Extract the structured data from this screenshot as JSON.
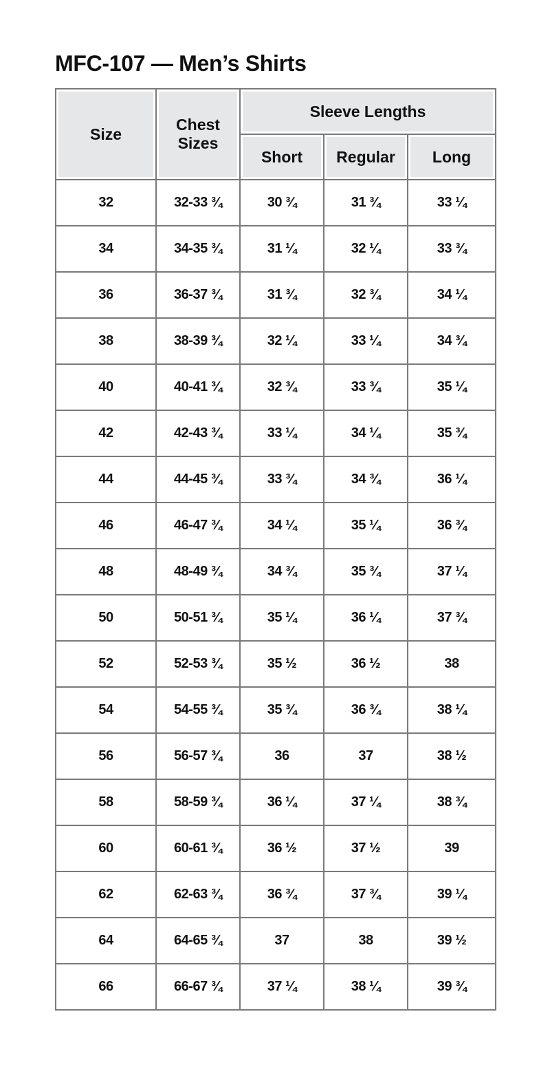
{
  "title": "MFC-107 — Men’s Shirts",
  "headers": {
    "size": "Size",
    "chest": "Chest Sizes",
    "sleeve": "Sleeve Lengths",
    "short": "Short",
    "regular": "Regular",
    "long": "Long"
  },
  "rows": [
    [
      "32",
      "32-33 ¾",
      "30 ¾",
      "31 ¾",
      "33 ¼"
    ],
    [
      "34",
      "34-35 ¾",
      "31 ¼",
      "32 ¼",
      "33 ¾"
    ],
    [
      "36",
      "36-37 ¾",
      "31 ¾",
      "32 ¾",
      "34 ¼"
    ],
    [
      "38",
      "38-39 ¾",
      "32 ¼",
      "33 ¼",
      "34 ¾"
    ],
    [
      "40",
      "40-41 ¾",
      "32 ¾",
      "33 ¾",
      "35 ¼"
    ],
    [
      "42",
      "42-43 ¾",
      "33 ¼",
      "34 ¼",
      "35 ¾"
    ],
    [
      "44",
      "44-45 ¾",
      "33 ¾",
      "34 ¾",
      "36 ¼"
    ],
    [
      "46",
      "46-47 ¾",
      "34 ¼",
      "35 ¼",
      "36 ¾"
    ],
    [
      "48",
      "48-49 ¾",
      "34 ¾",
      "35 ¾",
      "37 ¼"
    ],
    [
      "50",
      "50-51 ¾",
      "35 ¼",
      "36 ¼",
      "37 ¾"
    ],
    [
      "52",
      "52-53 ¾",
      "35 ½",
      "36 ½",
      "38"
    ],
    [
      "54",
      "54-55 ¾",
      "35 ¾",
      "36 ¾",
      "38 ¼"
    ],
    [
      "56",
      "56-57 ¾",
      "36",
      "37",
      "38 ½"
    ],
    [
      "58",
      "58-59 ¾",
      "36 ¼",
      "37 ¼",
      "38 ¾"
    ],
    [
      "60",
      "60-61 ¾",
      "36 ½",
      "37 ½",
      "39"
    ],
    [
      "62",
      "62-63 ¾",
      "36 ¾",
      "37 ¾",
      "39 ¼"
    ],
    [
      "64",
      "64-65 ¾",
      "37",
      "38",
      "39 ½"
    ],
    [
      "66",
      "66-67 ¾",
      "37 ¼",
      "38 ¼",
      "39 ¾"
    ]
  ]
}
